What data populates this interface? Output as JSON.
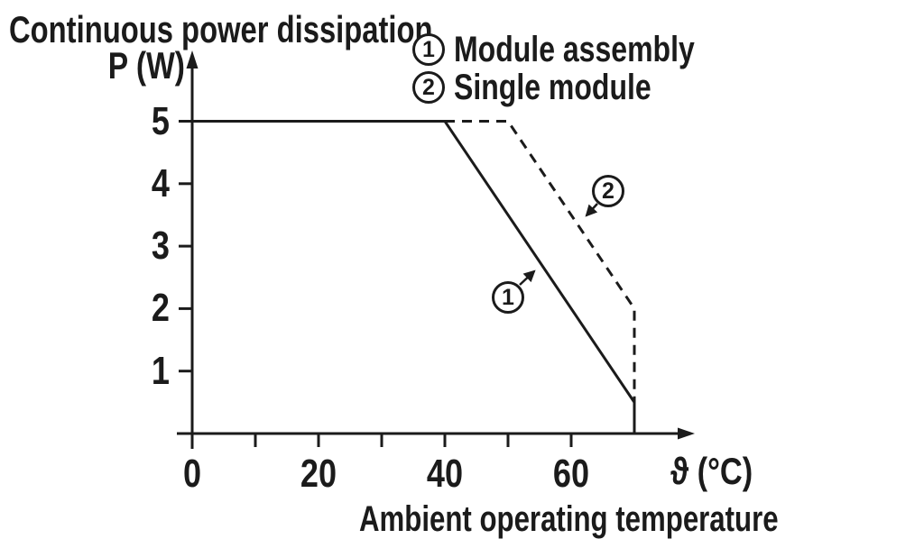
{
  "title": "Continuous power dissipation",
  "colors": {
    "ink": "#1b1b1b",
    "background": "#ffffff"
  },
  "legend": {
    "items": [
      {
        "symbol": "1",
        "label": "Module assembly"
      },
      {
        "symbol": "2",
        "label": "Single module"
      }
    ]
  },
  "chart_data": {
    "type": "line",
    "title": "Continuous power dissipation",
    "ylabel": "P (W)",
    "xlabel": "Ambient operating temperature",
    "x_unit": "ϑ (°C)",
    "xlim": [
      0,
      78
    ],
    "ylim": [
      0,
      5.65
    ],
    "grid": false,
    "legend_position": "top-right",
    "x_ticks": [
      10,
      20,
      30,
      40,
      50,
      60
    ],
    "x_tick_labels": [
      {
        "value": 0,
        "text": "0"
      },
      {
        "value": 20,
        "text": "20"
      },
      {
        "value": 40,
        "text": "40"
      },
      {
        "value": 60,
        "text": "60"
      }
    ],
    "y_ticks": [
      1,
      2,
      3,
      4,
      5
    ],
    "y_tick_labels": [
      {
        "value": 5,
        "text": "5"
      },
      {
        "value": 4,
        "text": "4"
      },
      {
        "value": 3,
        "text": "3"
      },
      {
        "value": 2,
        "text": "2"
      },
      {
        "value": 1,
        "text": "1"
      }
    ],
    "series": [
      {
        "name": "Module assembly",
        "marker_symbol": "1",
        "line_style": "solid",
        "points": [
          [
            0,
            5
          ],
          [
            40,
            5
          ],
          [
            70,
            0.5
          ],
          [
            70,
            0
          ]
        ]
      },
      {
        "name": "Single module",
        "marker_symbol": "2",
        "line_style": "dashed",
        "points": [
          [
            40,
            5
          ],
          [
            50,
            5
          ],
          [
            70,
            2
          ],
          [
            70,
            0.5
          ]
        ]
      }
    ]
  }
}
